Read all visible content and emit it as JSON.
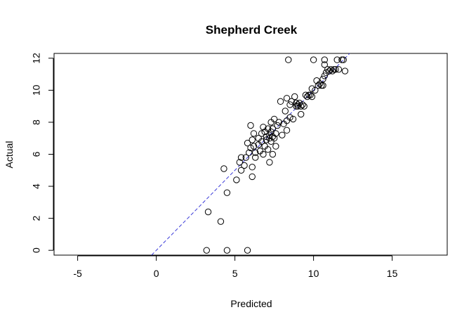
{
  "chart_data": {
    "type": "scatter",
    "title": "Shepherd Creek",
    "xlabel": "Predicted",
    "ylabel": "Actual",
    "xlim": [
      -6.5,
      18.5
    ],
    "ylim": [
      -0.3,
      12.3
    ],
    "xticks": [
      -5,
      0,
      5,
      10,
      15
    ],
    "yticks": [
      0,
      2,
      4,
      6,
      8,
      10,
      12
    ],
    "grid": false,
    "reference_line": {
      "slope": 1,
      "intercept": 0,
      "style": "dashed",
      "color": "#3b3bd9"
    },
    "points": [
      [
        3.2,
        0.0
      ],
      [
        4.5,
        0.0
      ],
      [
        5.8,
        0.0
      ],
      [
        3.3,
        2.4
      ],
      [
        4.1,
        1.8
      ],
      [
        4.5,
        3.6
      ],
      [
        4.3,
        5.1
      ],
      [
        5.1,
        4.4
      ],
      [
        5.3,
        5.5
      ],
      [
        5.4,
        5.8
      ],
      [
        5.4,
        5.0
      ],
      [
        5.6,
        5.3
      ],
      [
        5.7,
        5.8
      ],
      [
        5.8,
        6.7
      ],
      [
        5.9,
        6.1
      ],
      [
        6.0,
        6.4
      ],
      [
        6.0,
        7.8
      ],
      [
        6.1,
        6.9
      ],
      [
        6.1,
        5.2
      ],
      [
        6.1,
        4.6
      ],
      [
        6.2,
        7.3
      ],
      [
        6.2,
        6.5
      ],
      [
        6.3,
        6.1
      ],
      [
        6.3,
        5.8
      ],
      [
        6.5,
        7.0
      ],
      [
        6.5,
        6.6
      ],
      [
        6.6,
        6.2
      ],
      [
        6.7,
        7.3
      ],
      [
        6.7,
        6.8
      ],
      [
        6.8,
        7.7
      ],
      [
        6.8,
        6.0
      ],
      [
        6.9,
        7.4
      ],
      [
        6.9,
        6.5
      ],
      [
        7.0,
        7.1
      ],
      [
        7.0,
        6.9
      ],
      [
        7.1,
        7.6
      ],
      [
        7.1,
        6.3
      ],
      [
        7.2,
        7.2
      ],
      [
        7.2,
        7.0
      ],
      [
        7.2,
        5.5
      ],
      [
        7.3,
        8.0
      ],
      [
        7.3,
        7.4
      ],
      [
        7.3,
        6.8
      ],
      [
        7.4,
        7.6
      ],
      [
        7.4,
        7.1
      ],
      [
        7.4,
        6.0
      ],
      [
        7.5,
        8.2
      ],
      [
        7.5,
        7.0
      ],
      [
        7.6,
        7.3
      ],
      [
        7.6,
        6.5
      ],
      [
        7.7,
        7.8
      ],
      [
        7.8,
        8.0
      ],
      [
        7.9,
        9.3
      ],
      [
        8.0,
        7.2
      ],
      [
        8.1,
        7.9
      ],
      [
        8.2,
        8.7
      ],
      [
        8.3,
        9.5
      ],
      [
        8.3,
        8.1
      ],
      [
        8.3,
        7.5
      ],
      [
        8.4,
        11.9
      ],
      [
        8.5,
        9.1
      ],
      [
        8.5,
        8.3
      ],
      [
        8.6,
        9.3
      ],
      [
        8.7,
        8.2
      ],
      [
        8.8,
        9.6
      ],
      [
        8.9,
        9.2
      ],
      [
        8.9,
        9.0
      ],
      [
        9.0,
        9.1
      ],
      [
        9.0,
        9.0
      ],
      [
        9.1,
        9.2
      ],
      [
        9.2,
        9.0
      ],
      [
        9.2,
        8.5
      ],
      [
        9.3,
        9.1
      ],
      [
        9.4,
        9.0
      ],
      [
        9.5,
        9.7
      ],
      [
        9.6,
        9.6
      ],
      [
        9.7,
        9.7
      ],
      [
        9.8,
        9.7
      ],
      [
        9.9,
        10.1
      ],
      [
        9.9,
        9.6
      ],
      [
        10.0,
        11.9
      ],
      [
        10.1,
        10.0
      ],
      [
        10.2,
        10.6
      ],
      [
        10.3,
        10.3
      ],
      [
        10.4,
        10.4
      ],
      [
        10.5,
        10.3
      ],
      [
        10.6,
        10.7
      ],
      [
        10.6,
        10.3
      ],
      [
        10.7,
        11.9
      ],
      [
        10.7,
        11.6
      ],
      [
        10.7,
        10.9
      ],
      [
        10.8,
        11.1
      ],
      [
        10.9,
        11.3
      ],
      [
        11.0,
        11.2
      ],
      [
        11.1,
        11.3
      ],
      [
        11.2,
        11.2
      ],
      [
        11.3,
        11.3
      ],
      [
        11.4,
        11.3
      ],
      [
        11.5,
        11.9
      ],
      [
        11.6,
        11.3
      ],
      [
        11.8,
        11.9
      ],
      [
        11.9,
        11.9
      ],
      [
        12.0,
        11.2
      ]
    ]
  }
}
